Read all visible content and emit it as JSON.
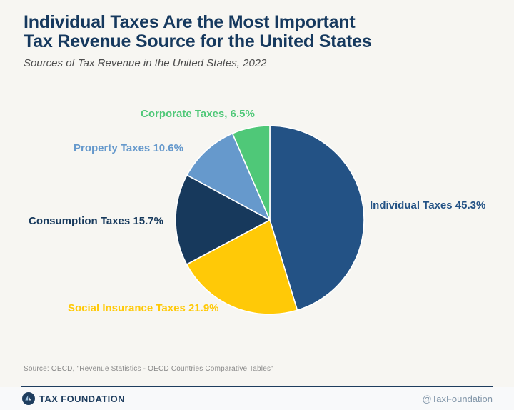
{
  "header": {
    "title_line1": "Individual Taxes Are the Most Important",
    "title_line2": "Tax Revenue Source for the United States",
    "subtitle": "Sources of Tax Revenue in the United States, 2022"
  },
  "chart_data": {
    "type": "pie",
    "title": "Sources of Tax Revenue in the United States, 2022",
    "start_angle_deg": 0,
    "direction": "clockwise",
    "legend_position": "labels-around-pie",
    "slices": [
      {
        "label": "Individual Taxes",
        "value": 45.3,
        "color": "#235285",
        "display": "Individual Taxes 45.3%"
      },
      {
        "label": "Social Insurance Taxes",
        "value": 21.9,
        "color": "#FFC907",
        "display": "Social Insurance Taxes 21.9%"
      },
      {
        "label": "Consumption Taxes",
        "value": 15.7,
        "color": "#17395C",
        "display": "Consumption Taxes 15.7%"
      },
      {
        "label": "Property Taxes",
        "value": 10.6,
        "color": "#6699CC",
        "display": "Property Taxes 10.6%"
      },
      {
        "label": "Corporate Taxes",
        "value": 6.5,
        "color": "#4FC878",
        "display": "Corporate Taxes, 6.5%"
      }
    ]
  },
  "source": "Source: OECD, \"Revenue Statistics - OECD Countries Comparative Tables\"",
  "footer": {
    "brand": "TAX FOUNDATION",
    "handle": "@TaxFoundation",
    "accent_color": "#1e3d5e"
  }
}
